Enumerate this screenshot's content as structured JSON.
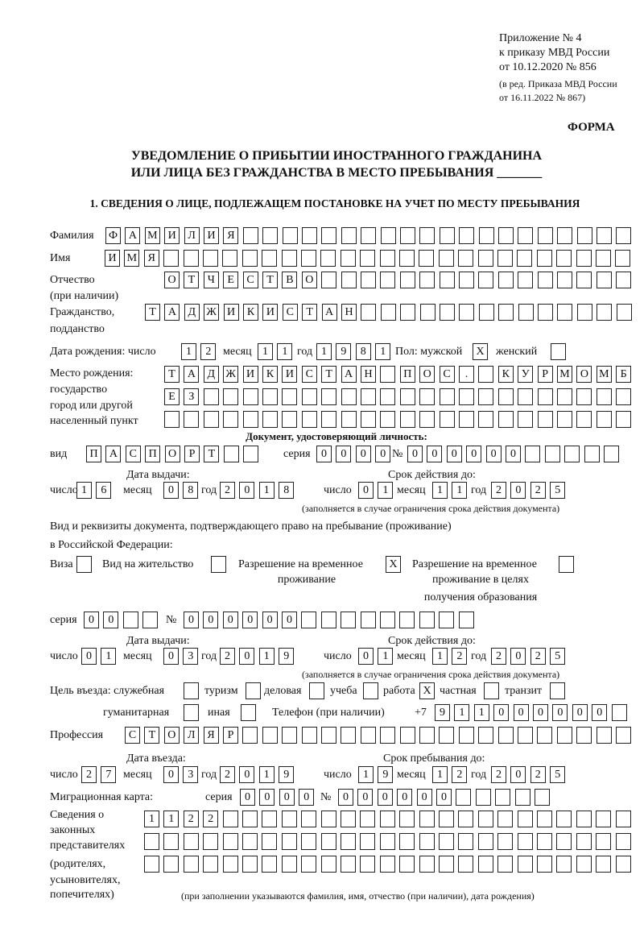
{
  "header": {
    "appendix": "Приложение № 4",
    "order": "к приказу МВД России",
    "order_date": "от 10.12.2020 № 856",
    "edition": "(в ред. Приказа МВД России",
    "edition_date": "от 16.11.2022 № 867)",
    "form_label": "ФОРМА",
    "title_line1": "УВЕДОМЛЕНИЕ О ПРИБЫТИИ ИНОСТРАННОГО ГРАЖДАНИНА",
    "title_line2": "ИЛИ ЛИЦА БЕЗ ГРАЖДАНСТВА В МЕСТО ПРЕБЫВАНИЯ _______",
    "section1": "1. СВЕДЕНИЯ О ЛИЦЕ, ПОДЛЕЖАЩЕМ ПОСТАНОВКЕ НА УЧЕТ ПО МЕСТУ ПРЕБЫВАНИЯ"
  },
  "labels": {
    "surname": "Фамилия",
    "name": "Имя",
    "patronymic": "Отчество",
    "patronymic_note": "(при наличии)",
    "citizenship1": "Гражданство,",
    "citizenship2": "подданство",
    "birth_date": "Дата рождения:  число",
    "day": "число",
    "month": "месяц",
    "year": "год",
    "sex": "Пол: мужской",
    "female": "женский",
    "birth_place1": "Место рождения:",
    "birth_place2": "государство",
    "birth_place3": "город или другой",
    "birth_place4": "населенный пункт",
    "id_doc": "Документ, удостоверяющий личность:",
    "kind": "вид",
    "series": "серия",
    "number": "№",
    "issue_date": "Дата выдачи:",
    "valid_until": "Срок действия до:",
    "validity_note": "(заполняется в случае ограничения срока действия документа)",
    "right_doc1": "Вид и реквизиты документа, подтверждающего право на пребывание (проживание)",
    "right_doc2": "в Российской Федерации:",
    "visa": "Виза",
    "residence": "Вид на жительство",
    "temp_permit1": "Разрешение на временное",
    "temp_permit2": "проживание",
    "edu_permit1": "Разрешение на временное",
    "edu_permit2": "проживание в целях",
    "edu_permit3": "получения образования",
    "purpose": "Цель въезда: служебная",
    "tourism": "туризм",
    "business": "деловая",
    "study": "учеба",
    "work": "работа",
    "private": "частная",
    "transit": "транзит",
    "humanitarian": "гуманитарная",
    "other": "иная",
    "phone": "Телефон (при наличии)",
    "phone_prefix": "+7",
    "profession": "Профессия",
    "entry_date": "Дата въезда:",
    "stay_until": "Срок пребывания до:",
    "migration_card": "Миграционная карта:",
    "reps1": "Сведения о",
    "reps2": "законных",
    "reps3": "представителях",
    "reps4": "(родителях,",
    "reps5": "усыновителях,",
    "reps6": "попечителях)",
    "reps_note": "(при заполнении указываются фамилия, имя, отчество (при наличии), дата рождения)"
  },
  "person": {
    "surname": "ФАМИЛИЯ",
    "name": "ИМЯ",
    "patronymic": "ОТЧЕСТВО",
    "citizenship": "ТАДЖИКИСТАН",
    "birth_day": "12",
    "birth_month": "11",
    "birth_year": "1981",
    "male": "X",
    "female": "",
    "birth_place_line1": "ТАДЖИКИСТАН ПОС. КУРМОМБ",
    "birth_place_line2": "ЕЗ",
    "birth_place_line3": ""
  },
  "id_document": {
    "kind": "ПАСПОРТ",
    "series": "0000",
    "number": "000000",
    "issue_day": "16",
    "issue_month": "08",
    "issue_year": "2018",
    "valid_day": "01",
    "valid_month": "11",
    "valid_year": "2025"
  },
  "right_document": {
    "visa": "",
    "residence": "",
    "temp_permit": "X",
    "edu_permit": "",
    "series": "00",
    "number": "000000",
    "issue_day": "01",
    "issue_month": "03",
    "issue_year": "2019",
    "valid_day": "01",
    "valid_month": "12",
    "valid_year": "2025"
  },
  "purpose": {
    "official": "",
    "tourism": "",
    "business": "",
    "study": "",
    "work": "X",
    "private": "",
    "transit": "",
    "humanitarian": "",
    "other": ""
  },
  "phone": "911000000",
  "profession": "СТОЛЯР",
  "entry": {
    "day": "27",
    "month": "03",
    "year": "2019",
    "stay_day": "19",
    "stay_month": "12",
    "stay_year": "2025"
  },
  "migration_card": {
    "series": "0000",
    "number": "000000"
  },
  "representatives": {
    "line1": "1122",
    "line2": "",
    "line3": ""
  }
}
